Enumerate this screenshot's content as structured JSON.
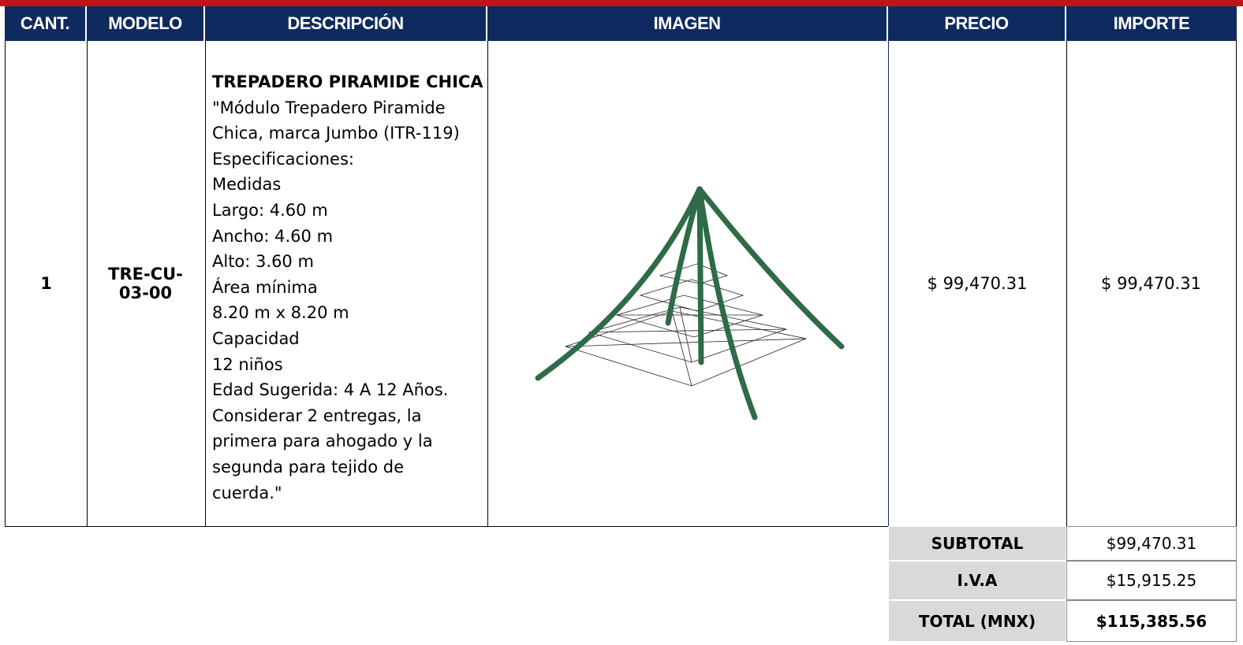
{
  "header": {
    "columns": [
      "CANT.",
      "MODELO",
      "DESCRIPCIÓN",
      "IMAGEN",
      "PRECIO",
      "IMPORTE"
    ]
  },
  "item": {
    "quantity": "1",
    "model": "TRE-CU-03-00",
    "description_title": "TREPADERO PIRAMIDE CHICA",
    "description_lines": [
      "\"Módulo Trepadero Piramide",
      "Chica, marca Jumbo (ITR-119)",
      "Especificaciones:",
      "Medidas",
      "Largo: 4.60 m",
      "Ancho: 4.60 m",
      "Alto: 3.60 m",
      "Área mínima",
      "8.20 m x 8.20 m",
      "Capacidad",
      "12 niños",
      "Edad Sugerida: 4 A 12 Años.",
      "Considerar 2 entregas, la",
      "primera para ahogado y la",
      "segunda para tejido de",
      "cuerda.\""
    ],
    "price": "$ 99,470.31",
    "amount": "$ 99,470.31"
  },
  "totals": [
    {
      "label": "SUBTOTAL",
      "value": "$99,470.31"
    },
    {
      "label": "I.V.A",
      "value": "$15,915.25"
    },
    {
      "label": "TOTAL (MNX)",
      "value": "$115,385.56"
    }
  ]
}
